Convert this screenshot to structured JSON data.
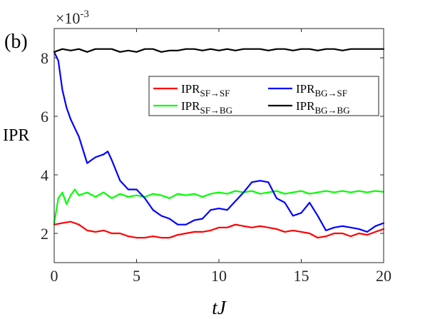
{
  "chart_data": {
    "type": "line",
    "panel_label": "(b)",
    "title": "",
    "xlabel": "tJ",
    "ylabel": "IPR",
    "xlim": [
      0,
      20
    ],
    "ylim": [
      1,
      9
    ],
    "y_exponent_label": "×10",
    "y_exponent_power": "-3",
    "xticks": [
      0,
      5,
      10,
      15,
      20
    ],
    "yticks": [
      2,
      4,
      6,
      8
    ],
    "grid": false,
    "legend_position": "top-right",
    "series": [
      {
        "name": "IPR",
        "sub": "SF→SF",
        "color": "#ff0000",
        "x": [
          0,
          0.5,
          1,
          1.5,
          2,
          2.5,
          3,
          3.5,
          4,
          4.5,
          5,
          5.5,
          6,
          6.5,
          7,
          7.5,
          8,
          8.5,
          9,
          9.5,
          10,
          10.5,
          11,
          11.5,
          12,
          12.5,
          13,
          13.5,
          14,
          14.5,
          15,
          15.5,
          16,
          16.5,
          17,
          17.5,
          18,
          18.5,
          19,
          19.5,
          20
        ],
        "values": [
          2.3,
          2.35,
          2.4,
          2.3,
          2.1,
          2.05,
          2.1,
          2.0,
          2.0,
          1.9,
          1.85,
          1.85,
          1.9,
          1.85,
          1.85,
          1.95,
          2.0,
          2.05,
          2.05,
          2.1,
          2.2,
          2.2,
          2.3,
          2.25,
          2.2,
          2.25,
          2.2,
          2.15,
          2.05,
          2.1,
          2.05,
          2.0,
          1.85,
          1.9,
          2.0,
          2.0,
          1.9,
          2.0,
          1.95,
          2.05,
          2.15
        ]
      },
      {
        "name": "IPR",
        "sub": "SF→BG",
        "color": "#00ff00",
        "x": [
          0,
          0.25,
          0.5,
          0.75,
          1,
          1.25,
          1.5,
          2,
          2.5,
          3,
          3.5,
          4,
          4.5,
          5,
          5.5,
          6,
          6.5,
          7,
          7.5,
          8,
          8.5,
          9,
          9.5,
          10,
          10.5,
          11,
          11.5,
          12,
          12.5,
          13,
          13.5,
          14,
          14.5,
          15,
          15.5,
          16,
          16.5,
          17,
          17.5,
          18,
          18.5,
          19,
          19.5,
          20
        ],
        "values": [
          2.35,
          3.2,
          3.4,
          3.0,
          3.3,
          3.5,
          3.3,
          3.4,
          3.25,
          3.4,
          3.2,
          3.35,
          3.25,
          3.3,
          3.25,
          3.35,
          3.3,
          3.2,
          3.35,
          3.3,
          3.35,
          3.25,
          3.35,
          3.4,
          3.35,
          3.45,
          3.4,
          3.45,
          3.35,
          3.4,
          3.45,
          3.35,
          3.4,
          3.45,
          3.35,
          3.4,
          3.45,
          3.4,
          3.45,
          3.4,
          3.45,
          3.4,
          3.45,
          3.42
        ]
      },
      {
        "name": "IPR",
        "sub": "BG→SF",
        "color": "#0000ff",
        "x": [
          0,
          0.25,
          0.5,
          0.75,
          1,
          1.5,
          2,
          2.5,
          3,
          3.25,
          3.5,
          4,
          4.5,
          5,
          5.5,
          6,
          6.5,
          7,
          7.5,
          8,
          8.5,
          9,
          9.5,
          10,
          10.5,
          11,
          11.5,
          12,
          12.5,
          13,
          13.5,
          14,
          14.5,
          15,
          15.5,
          16,
          16.5,
          17,
          17.5,
          18,
          18.5,
          19,
          19.5,
          20
        ],
        "values": [
          8.2,
          7.9,
          6.9,
          6.3,
          5.9,
          5.3,
          4.4,
          4.6,
          4.7,
          4.8,
          4.5,
          3.8,
          3.5,
          3.5,
          3.2,
          2.8,
          2.6,
          2.5,
          2.3,
          2.3,
          2.45,
          2.5,
          2.8,
          2.85,
          2.8,
          3.1,
          3.4,
          3.75,
          3.8,
          3.75,
          3.2,
          3.05,
          2.6,
          2.7,
          3.05,
          2.6,
          2.1,
          2.2,
          2.25,
          2.2,
          2.15,
          2.05,
          2.25,
          2.35
        ]
      },
      {
        "name": "IPR",
        "sub": "BG→BG",
        "color": "#000000",
        "x": [
          0,
          0.5,
          1,
          1.5,
          2,
          2.5,
          3,
          3.5,
          4,
          4.5,
          5,
          5.5,
          6,
          6.5,
          7,
          7.5,
          8,
          8.5,
          9,
          9.5,
          10,
          10.5,
          11,
          11.5,
          12,
          12.5,
          13,
          13.5,
          14,
          14.5,
          15,
          15.5,
          16,
          16.5,
          17,
          17.5,
          18,
          18.5,
          19,
          19.5,
          20
        ],
        "values": [
          8.2,
          8.3,
          8.25,
          8.3,
          8.2,
          8.3,
          8.3,
          8.3,
          8.2,
          8.25,
          8.2,
          8.3,
          8.3,
          8.2,
          8.25,
          8.25,
          8.3,
          8.3,
          8.25,
          8.3,
          8.25,
          8.3,
          8.25,
          8.3,
          8.3,
          8.3,
          8.25,
          8.3,
          8.3,
          8.25,
          8.3,
          8.3,
          8.25,
          8.3,
          8.3,
          8.25,
          8.3,
          8.3,
          8.3,
          8.3,
          8.3
        ]
      }
    ]
  }
}
